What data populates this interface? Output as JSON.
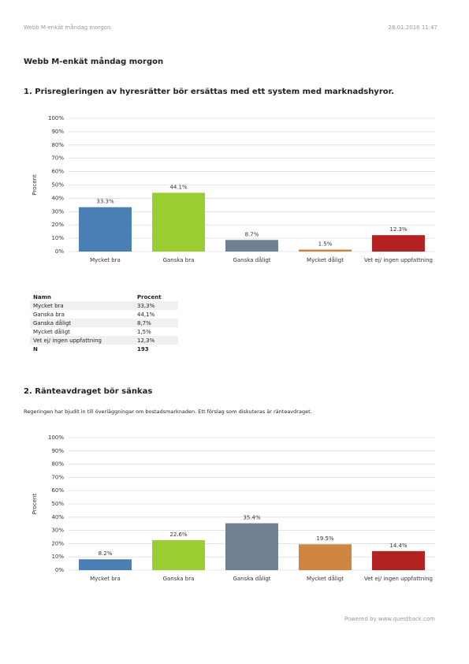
{
  "header": {
    "left": "Webb M-enkät måndag morgon",
    "right": "28.01.2016 11:47"
  },
  "title": "Webb M-enkät måndag morgon",
  "chart_data": [
    {
      "type": "bar",
      "title": "1. Prisregleringen av hyresrätter bör ersättas med ett system med marknadshyror.",
      "ylabel": "Procent",
      "categories": [
        "Mycket bra",
        "Ganska bra",
        "Ganska dåligt",
        "Mycket dåligt",
        "Vet ej/ ingen uppfattning"
      ],
      "values": [
        33.3,
        44.1,
        8.7,
        1.5,
        12.3
      ],
      "value_labels": [
        "33.3%",
        "44.1%",
        "8.7%",
        "1.5%",
        "12.3%"
      ],
      "colors": [
        "#4a7fb4",
        "#9acd32",
        "#708090",
        "#cd853f",
        "#b22222"
      ],
      "ylim": [
        0,
        100
      ],
      "yticks": [
        {
          "value": 0,
          "label": "0%"
        },
        {
          "value": 10,
          "label": "10%"
        },
        {
          "value": 20,
          "label": "20%"
        },
        {
          "value": 30,
          "label": "30%"
        },
        {
          "value": 40,
          "label": "40%"
        },
        {
          "value": 50,
          "label": "50%"
        },
        {
          "value": 60,
          "label": "60%"
        },
        {
          "value": 70,
          "label": "70%"
        },
        {
          "value": 80,
          "label": "80%"
        },
        {
          "value": 90,
          "label": "90%"
        },
        {
          "value": 100,
          "label": "100%"
        }
      ],
      "grid": true
    },
    {
      "type": "bar",
      "title": "2. Ränteavdraget bör sänkas",
      "subtitle": "Regeringen har bjudit in till överläggningar om bostadsmarknaden. Ett förslag som diskuteras är ränteavdraget.",
      "ylabel": "Procent",
      "categories": [
        "Mycket bra",
        "Ganska bra",
        "Ganska dåligt",
        "Mycket dåligt",
        "Vet ej/ ingen uppfattning"
      ],
      "values": [
        8.2,
        22.6,
        35.4,
        19.5,
        14.4
      ],
      "value_labels": [
        "8.2%",
        "22.6%",
        "35.4%",
        "19.5%",
        "14.4%"
      ],
      "colors": [
        "#4a7fb4",
        "#9acd32",
        "#708090",
        "#cd853f",
        "#b22222"
      ],
      "ylim": [
        0,
        100
      ],
      "yticks": [
        {
          "value": 0,
          "label": "0%"
        },
        {
          "value": 10,
          "label": "10%"
        },
        {
          "value": 20,
          "label": "20%"
        },
        {
          "value": 30,
          "label": "30%"
        },
        {
          "value": 40,
          "label": "40%"
        },
        {
          "value": 50,
          "label": "50%"
        },
        {
          "value": 60,
          "label": "60%"
        },
        {
          "value": 70,
          "label": "70%"
        },
        {
          "value": 80,
          "label": "80%"
        },
        {
          "value": 90,
          "label": "90%"
        },
        {
          "value": 100,
          "label": "100%"
        }
      ],
      "grid": true
    }
  ],
  "table": {
    "header": [
      "Namn",
      "Procent"
    ],
    "rows": [
      [
        "Mycket bra",
        "33,3%"
      ],
      [
        "Ganska bra",
        "44,1%"
      ],
      [
        "Ganska dåligt",
        "8,7%"
      ],
      [
        "Mycket dåligt",
        "1,5%"
      ],
      [
        "Vet ej/ ingen uppfattning",
        "12,3%"
      ],
      [
        "N",
        "193"
      ]
    ]
  },
  "footer": "Powered by www.questback.com"
}
